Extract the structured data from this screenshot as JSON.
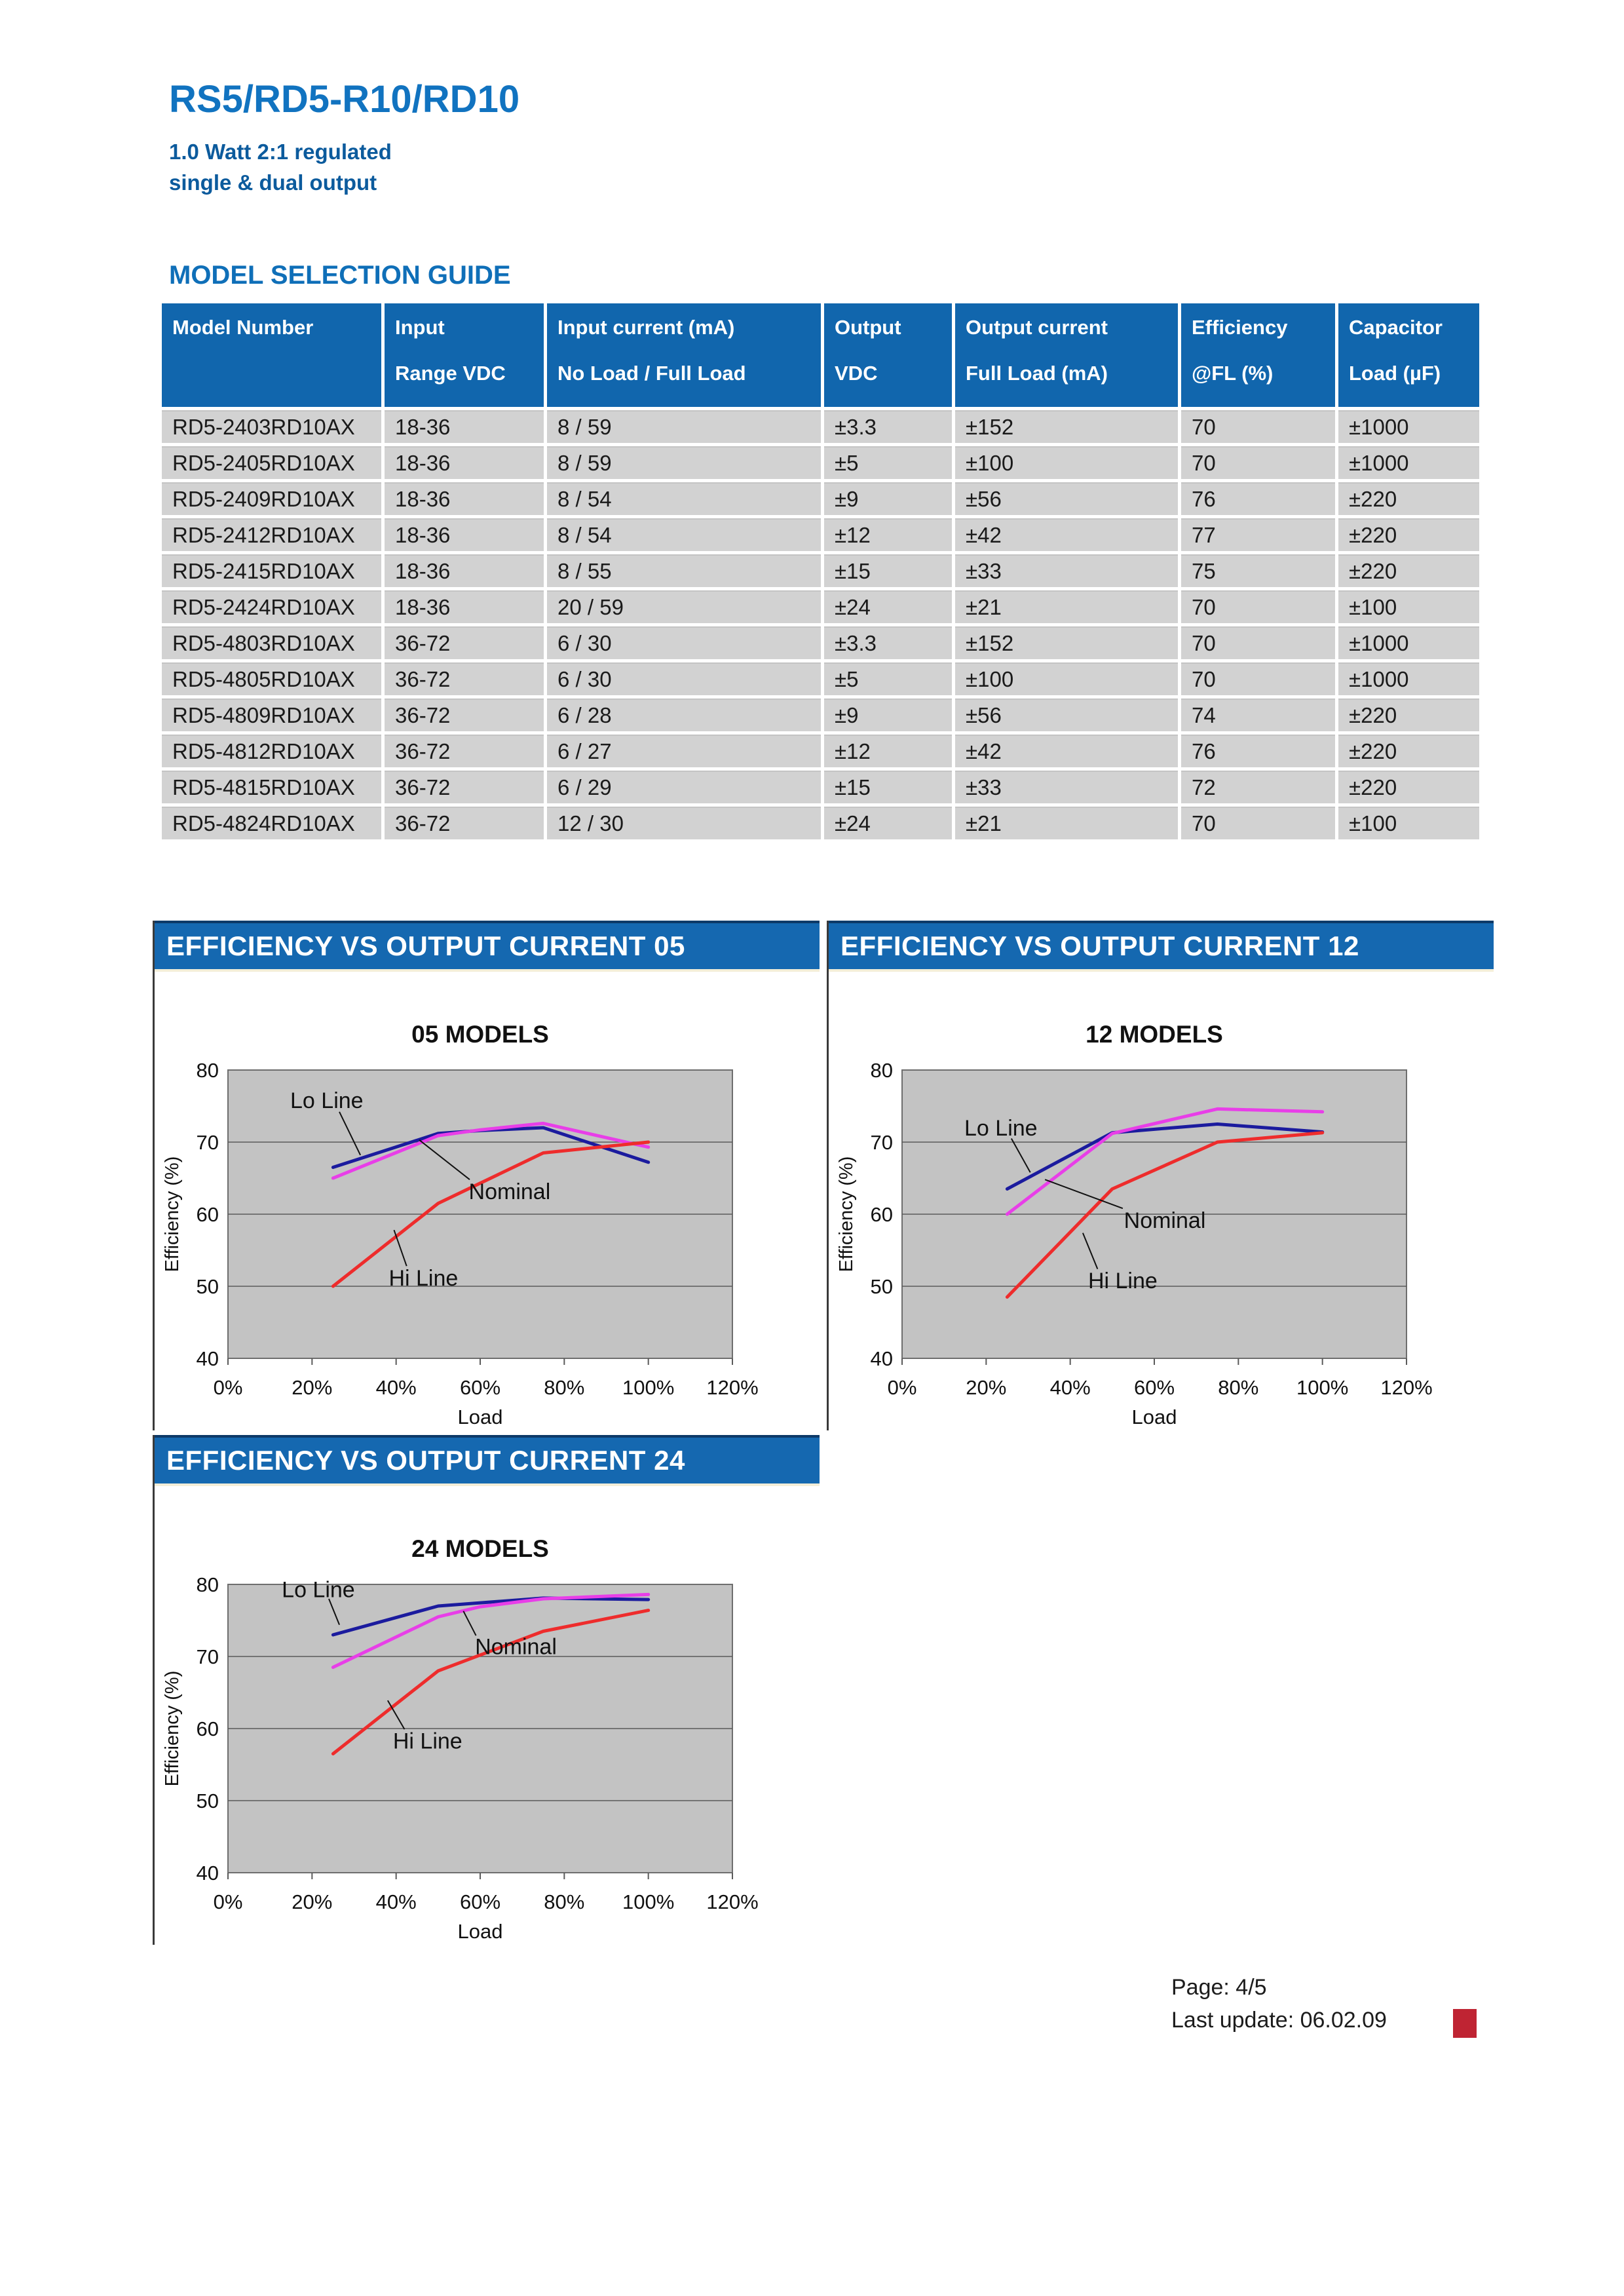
{
  "page": {
    "title": "RS5/RD5-R10/RD10",
    "subtitle_line1": "1.0 Watt 2:1 regulated",
    "subtitle_line2": "single & dual output",
    "section_heading": "MODEL SELECTION GUIDE",
    "footer": {
      "page_label": "Page: 4/5",
      "last_update": "Last update: 06.02.09"
    }
  },
  "colors": {
    "accent_blue": "#1166ad",
    "chart_bar_blue": "#1568b0",
    "title_blue": "#1173c0",
    "subtitle_blue": "#0c5b9d",
    "row_gray": "#d2d2d2",
    "plot_gray": "#c3c3c3",
    "grid_line": "#5a5a5a",
    "lo_line": "#1b1b9e",
    "nominal": "#e83ee8",
    "hi_line": "#ee2c2c",
    "footer_red": "#bf2433"
  },
  "table": {
    "columns": [
      {
        "line1": "Model Number",
        "line2": ""
      },
      {
        "line1": "Input",
        "line2": "Range VDC"
      },
      {
        "line1": "Input current (mA)",
        "line2": "No Load / Full Load"
      },
      {
        "line1": "Output",
        "line2": "VDC"
      },
      {
        "line1": "Output current",
        "line2": "Full Load (mA)"
      },
      {
        "line1": "Efficiency",
        "line2": "@FL (%)"
      },
      {
        "line1": "Capacitor",
        "line2": "Load (µF)"
      }
    ],
    "rows": [
      [
        "RD5-2403RD10AX",
        "18-36",
        "8 / 59",
        "±3.3",
        "±152",
        "70",
        "±1000"
      ],
      [
        "RD5-2405RD10AX",
        "18-36",
        "8 / 59",
        "±5",
        "±100",
        "70",
        "±1000"
      ],
      [
        "RD5-2409RD10AX",
        "18-36",
        "8 / 54",
        "±9",
        "±56",
        "76",
        "±220"
      ],
      [
        "RD5-2412RD10AX",
        "18-36",
        "8 / 54",
        "±12",
        "±42",
        "77",
        "±220"
      ],
      [
        "RD5-2415RD10AX",
        "18-36",
        "8 / 55",
        "±15",
        "±33",
        "75",
        "±220"
      ],
      [
        "RD5-2424RD10AX",
        "18-36",
        "20 / 59",
        "±24",
        "±21",
        "70",
        "±100"
      ],
      [
        "RD5-4803RD10AX",
        "36-72",
        "6 / 30",
        "±3.3",
        "±152",
        "70",
        "±1000"
      ],
      [
        "RD5-4805RD10AX",
        "36-72",
        "6 / 30",
        "±5",
        "±100",
        "70",
        "±1000"
      ],
      [
        "RD5-4809RD10AX",
        "36-72",
        "6 / 28",
        "±9",
        "±56",
        "74",
        "±220"
      ],
      [
        "RD5-4812RD10AX",
        "36-72",
        "6 / 27",
        "±12",
        "±42",
        "76",
        "±220"
      ],
      [
        "RD5-4815RD10AX",
        "36-72",
        "6 / 29",
        "±15",
        "±33",
        "72",
        "±220"
      ],
      [
        "RD5-4824RD10AX",
        "36-72",
        "12 / 30",
        "±24",
        "±21",
        "70",
        "±100"
      ]
    ]
  },
  "chart_data": [
    {
      "type": "line",
      "header": "EFFICIENCY VS OUTPUT CURRENT 05",
      "title": "05 MODELS",
      "xlabel": "Load",
      "ylabel": "Efficiency (%)",
      "xlim": [
        0,
        120
      ],
      "ylim": [
        40,
        80
      ],
      "x_ticks": [
        "0%",
        "20%",
        "40%",
        "60%",
        "80%",
        "100%",
        "120%"
      ],
      "y_ticks": [
        40,
        50,
        60,
        70,
        80
      ],
      "grid": "horizontal",
      "legend_position": "inline-annotations",
      "series": [
        {
          "name": "Lo Line",
          "color_key": "lo_line",
          "points": [
            [
              25,
              66.5
            ],
            [
              50,
              71.2
            ],
            [
              60,
              71.6
            ],
            [
              75,
              72.0
            ],
            [
              100,
              67.2
            ]
          ]
        },
        {
          "name": "Nominal",
          "color_key": "nominal",
          "points": [
            [
              25,
              65.0
            ],
            [
              50,
              70.9
            ],
            [
              60,
              71.7
            ],
            [
              75,
              72.6
            ],
            [
              100,
              69.3
            ]
          ]
        },
        {
          "name": "Hi Line",
          "color_key": "hi_line",
          "points": [
            [
              25,
              50.0
            ],
            [
              50,
              61.5
            ],
            [
              75,
              68.5
            ],
            [
              100,
              70.0
            ]
          ]
        }
      ],
      "annotations": [
        {
          "text": "Lo Line",
          "x": 23.5,
          "y": 75.8,
          "leader": [
            [
              26.5,
              74.2
            ],
            [
              31.5,
              68.2
            ]
          ]
        },
        {
          "text": "Nominal",
          "x": 67.0,
          "y": 63.2,
          "leader": [
            [
              57.5,
              64.8
            ],
            [
              45.5,
              70.3
            ]
          ]
        },
        {
          "text": "Hi Line",
          "x": 46.5,
          "y": 51.2,
          "leader": [
            [
              42.5,
              52.8
            ],
            [
              39.5,
              57.8
            ]
          ]
        }
      ]
    },
    {
      "type": "line",
      "header": "EFFICIENCY VS OUTPUT CURRENT 12",
      "title": "12 MODELS",
      "xlabel": "Load",
      "ylabel": "Efficiency (%)",
      "xlim": [
        0,
        120
      ],
      "ylim": [
        40,
        80
      ],
      "x_ticks": [
        "0%",
        "20%",
        "40%",
        "60%",
        "80%",
        "100%",
        "120%"
      ],
      "y_ticks": [
        40,
        50,
        60,
        70,
        80
      ],
      "grid": "horizontal",
      "legend_position": "inline-annotations",
      "series": [
        {
          "name": "Lo Line",
          "color_key": "lo_line",
          "points": [
            [
              25,
              63.5
            ],
            [
              50,
              71.3
            ],
            [
              75,
              72.5
            ],
            [
              100,
              71.4
            ]
          ]
        },
        {
          "name": "Nominal",
          "color_key": "nominal",
          "points": [
            [
              25,
              60.0
            ],
            [
              50,
              71.2
            ],
            [
              75,
              74.6
            ],
            [
              100,
              74.2
            ]
          ]
        },
        {
          "name": "Hi Line",
          "color_key": "hi_line",
          "points": [
            [
              25,
              48.5
            ],
            [
              50,
              63.5
            ],
            [
              75,
              70.0
            ],
            [
              100,
              71.3
            ]
          ]
        }
      ],
      "annotations": [
        {
          "text": "Lo Line",
          "x": 23.5,
          "y": 72.0,
          "leader": [
            [
              26.0,
              70.5
            ],
            [
              30.5,
              65.8
            ]
          ]
        },
        {
          "text": "Nominal",
          "x": 62.5,
          "y": 59.2,
          "leader": [
            [
              52.5,
              60.8
            ],
            [
              34.0,
              64.8
            ]
          ]
        },
        {
          "text": "Hi Line",
          "x": 52.5,
          "y": 50.8,
          "leader": [
            [
              46.5,
              52.4
            ],
            [
              43.0,
              57.4
            ]
          ]
        }
      ]
    },
    {
      "type": "line",
      "header": "EFFICIENCY VS OUTPUT CURRENT 24",
      "title": "24 MODELS",
      "xlabel": "Load",
      "ylabel": "Efficiency (%)",
      "xlim": [
        0,
        120
      ],
      "ylim": [
        40,
        80
      ],
      "x_ticks": [
        "0%",
        "20%",
        "40%",
        "60%",
        "80%",
        "100%",
        "120%"
      ],
      "y_ticks": [
        40,
        50,
        60,
        70,
        80
      ],
      "grid": "horizontal",
      "legend_position": "inline-annotations",
      "series": [
        {
          "name": "Lo Line",
          "color_key": "lo_line",
          "points": [
            [
              25,
              73.0
            ],
            [
              50,
              77.0
            ],
            [
              75,
              78.1
            ],
            [
              100,
              77.9
            ]
          ]
        },
        {
          "name": "Nominal",
          "color_key": "nominal",
          "points": [
            [
              25,
              68.5
            ],
            [
              50,
              75.5
            ],
            [
              60,
              76.9
            ],
            [
              75,
              78.0
            ],
            [
              100,
              78.6
            ]
          ]
        },
        {
          "name": "Hi Line",
          "color_key": "hi_line",
          "points": [
            [
              25,
              56.5
            ],
            [
              50,
              68.0
            ],
            [
              75,
              73.5
            ],
            [
              100,
              76.4
            ]
          ]
        }
      ],
      "annotations": [
        {
          "text": "Lo Line",
          "x": 21.5,
          "y": 79.3,
          "leader": [
            [
              24.0,
              78.0
            ],
            [
              26.5,
              74.4
            ]
          ]
        },
        {
          "text": "Nominal",
          "x": 68.5,
          "y": 71.4,
          "leader": [
            [
              59.0,
              72.9
            ],
            [
              56.0,
              76.3
            ]
          ]
        },
        {
          "text": "Hi Line",
          "x": 47.5,
          "y": 58.3,
          "leader": [
            [
              42.0,
              59.9
            ],
            [
              38.0,
              63.9
            ]
          ]
        }
      ]
    }
  ]
}
